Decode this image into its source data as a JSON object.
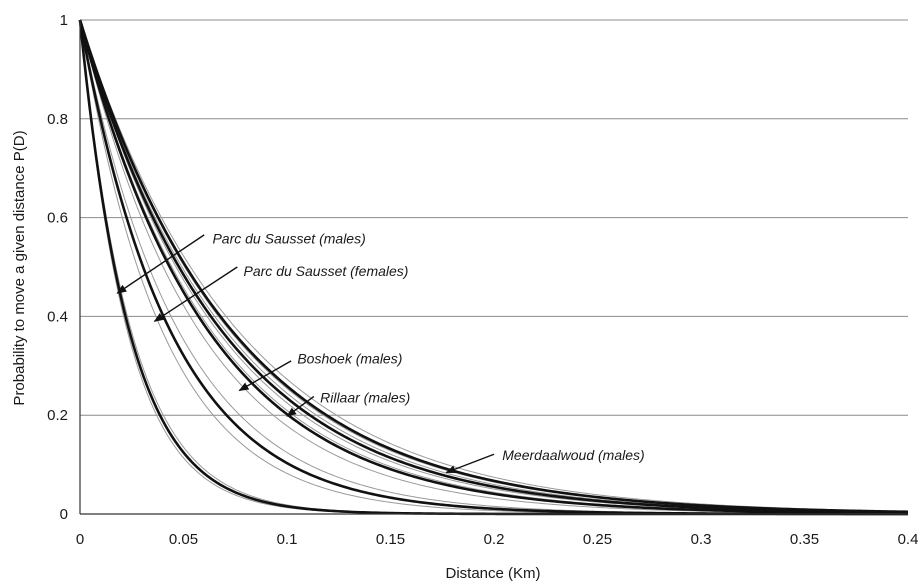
{
  "chart_data": {
    "type": "line",
    "title": "",
    "xlabel": "Distance (Km)",
    "ylabel": "Probability to move a given distance P(D)",
    "xlim": [
      0,
      0.4
    ],
    "ylim": [
      0,
      1
    ],
    "x_ticks": [
      "0",
      "0.05",
      "0.1",
      "0.15",
      "0.2",
      "0.25",
      "0.3",
      "0.35",
      "0.4"
    ],
    "y_ticks": [
      "0",
      "0.2",
      "0.4",
      "0.6",
      "0.8",
      "1"
    ],
    "grid": "horizontal",
    "line_color": "#111111",
    "ci_color": "#9a9a9a",
    "series": [
      {
        "name": "Parc du Sausset (males)",
        "decay_km": 0.024,
        "ci_low_km": 0.023,
        "ci_high_km": 0.025
      },
      {
        "name": "Parc du Sausset (females)",
        "decay_km": 0.044,
        "ci_low_km": 0.04,
        "ci_high_km": 0.048
      },
      {
        "name": "Boshoek (males)",
        "decay_km": 0.0625,
        "ci_low_km": 0.058,
        "ci_high_km": 0.067
      },
      {
        "name": "Rillaar (males)",
        "decay_km": 0.069,
        "ci_low_km": 0.064,
        "ci_high_km": 0.073
      },
      {
        "name": "Meerdaalwoud (males)",
        "decay_km": 0.074,
        "ci_low_km": 0.071,
        "ci_high_km": 0.077
      }
    ],
    "annotations": [
      {
        "label": "Parc du Sausset (males)",
        "text_x": 0.064,
        "text_y": 0.558,
        "arrow_from": [
          0.06,
          0.565
        ],
        "arrow_to": [
          0.018,
          0.447
        ]
      },
      {
        "label": "Parc du Sausset (females)",
        "text_x": 0.079,
        "text_y": 0.492,
        "arrow_from": [
          0.076,
          0.5
        ],
        "arrow_to": [
          0.036,
          0.39
        ]
      },
      {
        "label": "Boshoek (males)",
        "text_x": 0.105,
        "text_y": 0.315,
        "arrow_from": [
          0.102,
          0.31
        ],
        "arrow_to": [
          0.077,
          0.25
        ]
      },
      {
        "label": "Rillaar (males)",
        "text_x": 0.116,
        "text_y": 0.236,
        "arrow_from": [
          0.113,
          0.238
        ],
        "arrow_to": [
          0.1,
          0.198
        ]
      },
      {
        "label": "Meerdaalwoud (males)",
        "text_x": 0.204,
        "text_y": 0.119,
        "arrow_from": [
          0.2,
          0.121
        ],
        "arrow_to": [
          0.177,
          0.084
        ]
      }
    ]
  }
}
